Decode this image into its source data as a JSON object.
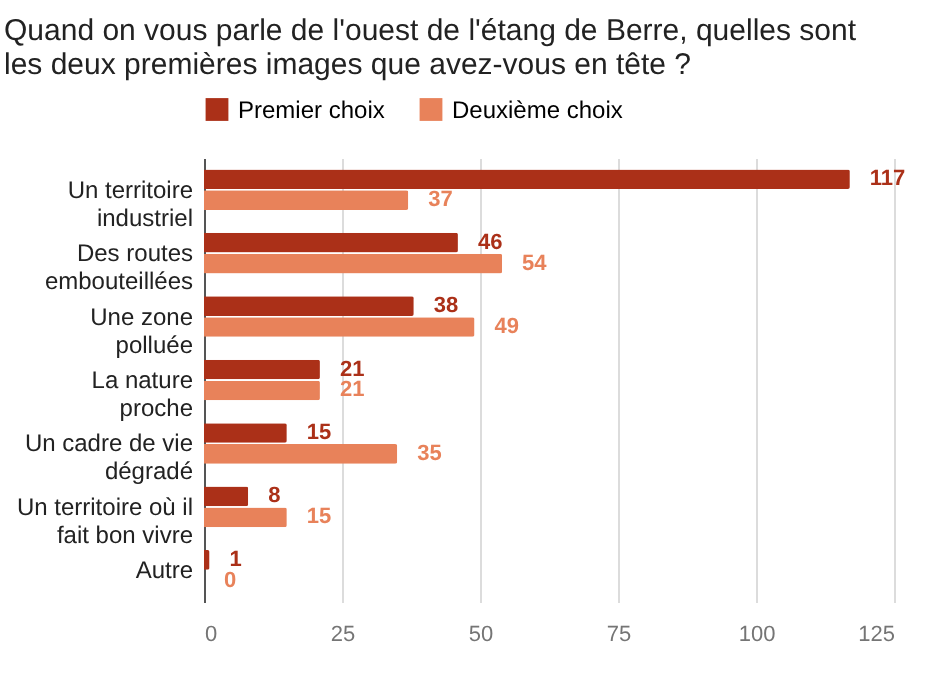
{
  "chart_data": {
    "type": "bar",
    "orientation": "horizontal",
    "title": "Quand on vous parle de  l'ouest de l'étang de Berre, quelles sont les deux premières images que avez-vous en tête ?",
    "categories": [
      "Un territoire industriel",
      "Des routes embouteillées",
      "Une zone polluée",
      "La nature proche",
      "Un cadre de vie dégradé",
      "Un territoire où il fait bon vivre",
      "Autre"
    ],
    "series": [
      {
        "name": "Premier choix",
        "color": "#ab3018",
        "values": [
          117,
          46,
          38,
          21,
          15,
          8,
          1
        ]
      },
      {
        "name": "Deuxième choix",
        "color": "#e8825a",
        "values": [
          37,
          54,
          49,
          21,
          35,
          15,
          0
        ]
      }
    ],
    "xlim": [
      0,
      125
    ],
    "xticks": [
      0,
      25,
      50,
      75,
      100,
      125
    ],
    "grid": "x",
    "legend": "top",
    "data_labels": true
  }
}
